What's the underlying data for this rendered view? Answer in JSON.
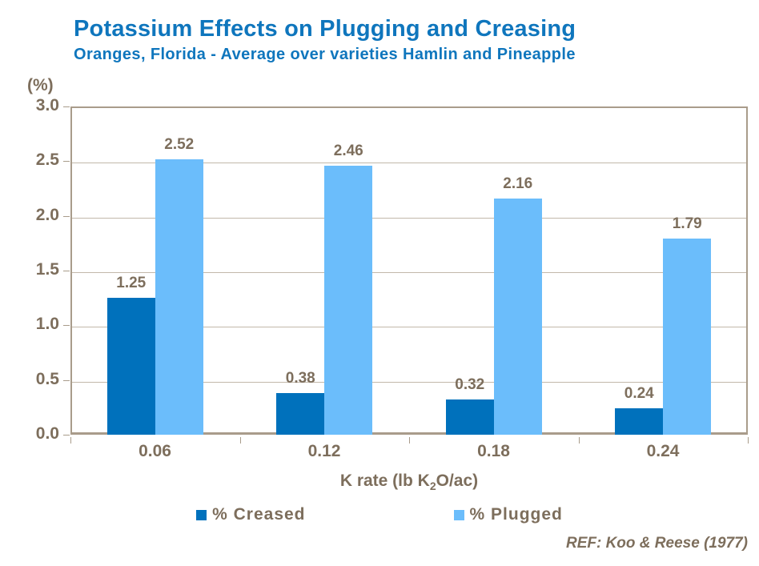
{
  "title": "Potassium Effects on Plugging and Creasing",
  "subtitle": "Oranges, Florida - Average over varieties Hamlin and Pineapple",
  "y_axis_unit": "(%)",
  "reference": "REF: Koo & Reese (1977)",
  "x_axis_title_parts": {
    "pre": "K rate (lb K",
    "sub": "2",
    "post": "O/ac)"
  },
  "colors": {
    "title_blue": "#0f76bd",
    "creased_bar": "#0071bc",
    "plugged_bar": "#6bbdfb",
    "text_taupe": "#7d6e5c",
    "axis_line": "#a99c8b",
    "gridline": "#c2b8aa",
    "background": "#ffffff"
  },
  "chart_data": {
    "type": "bar",
    "title": "Potassium Effects on Plugging and Creasing",
    "subtitle": "Oranges, Florida - Average over varieties Hamlin and Pineapple",
    "categories": [
      "0.06",
      "0.12",
      "0.18",
      "0.24"
    ],
    "series": [
      {
        "name": "% Creased",
        "color": "#0071bc",
        "values": [
          1.25,
          0.38,
          0.32,
          0.24
        ]
      },
      {
        "name": "% Plugged",
        "color": "#6bbdfb",
        "values": [
          2.52,
          2.46,
          2.16,
          1.79
        ]
      }
    ],
    "xlabel": "K rate (lb K₂O/ac)",
    "ylabel": "(%)",
    "ylim": [
      0,
      3.0
    ],
    "ytick_step": 0.5,
    "yticks": [
      "0.0",
      "0.5",
      "1.0",
      "1.5",
      "2.0",
      "2.5",
      "3.0"
    ],
    "grid": true,
    "value_labels": true,
    "legend_position": "bottom",
    "annotation": "REF: Koo & Reese (1977)"
  }
}
